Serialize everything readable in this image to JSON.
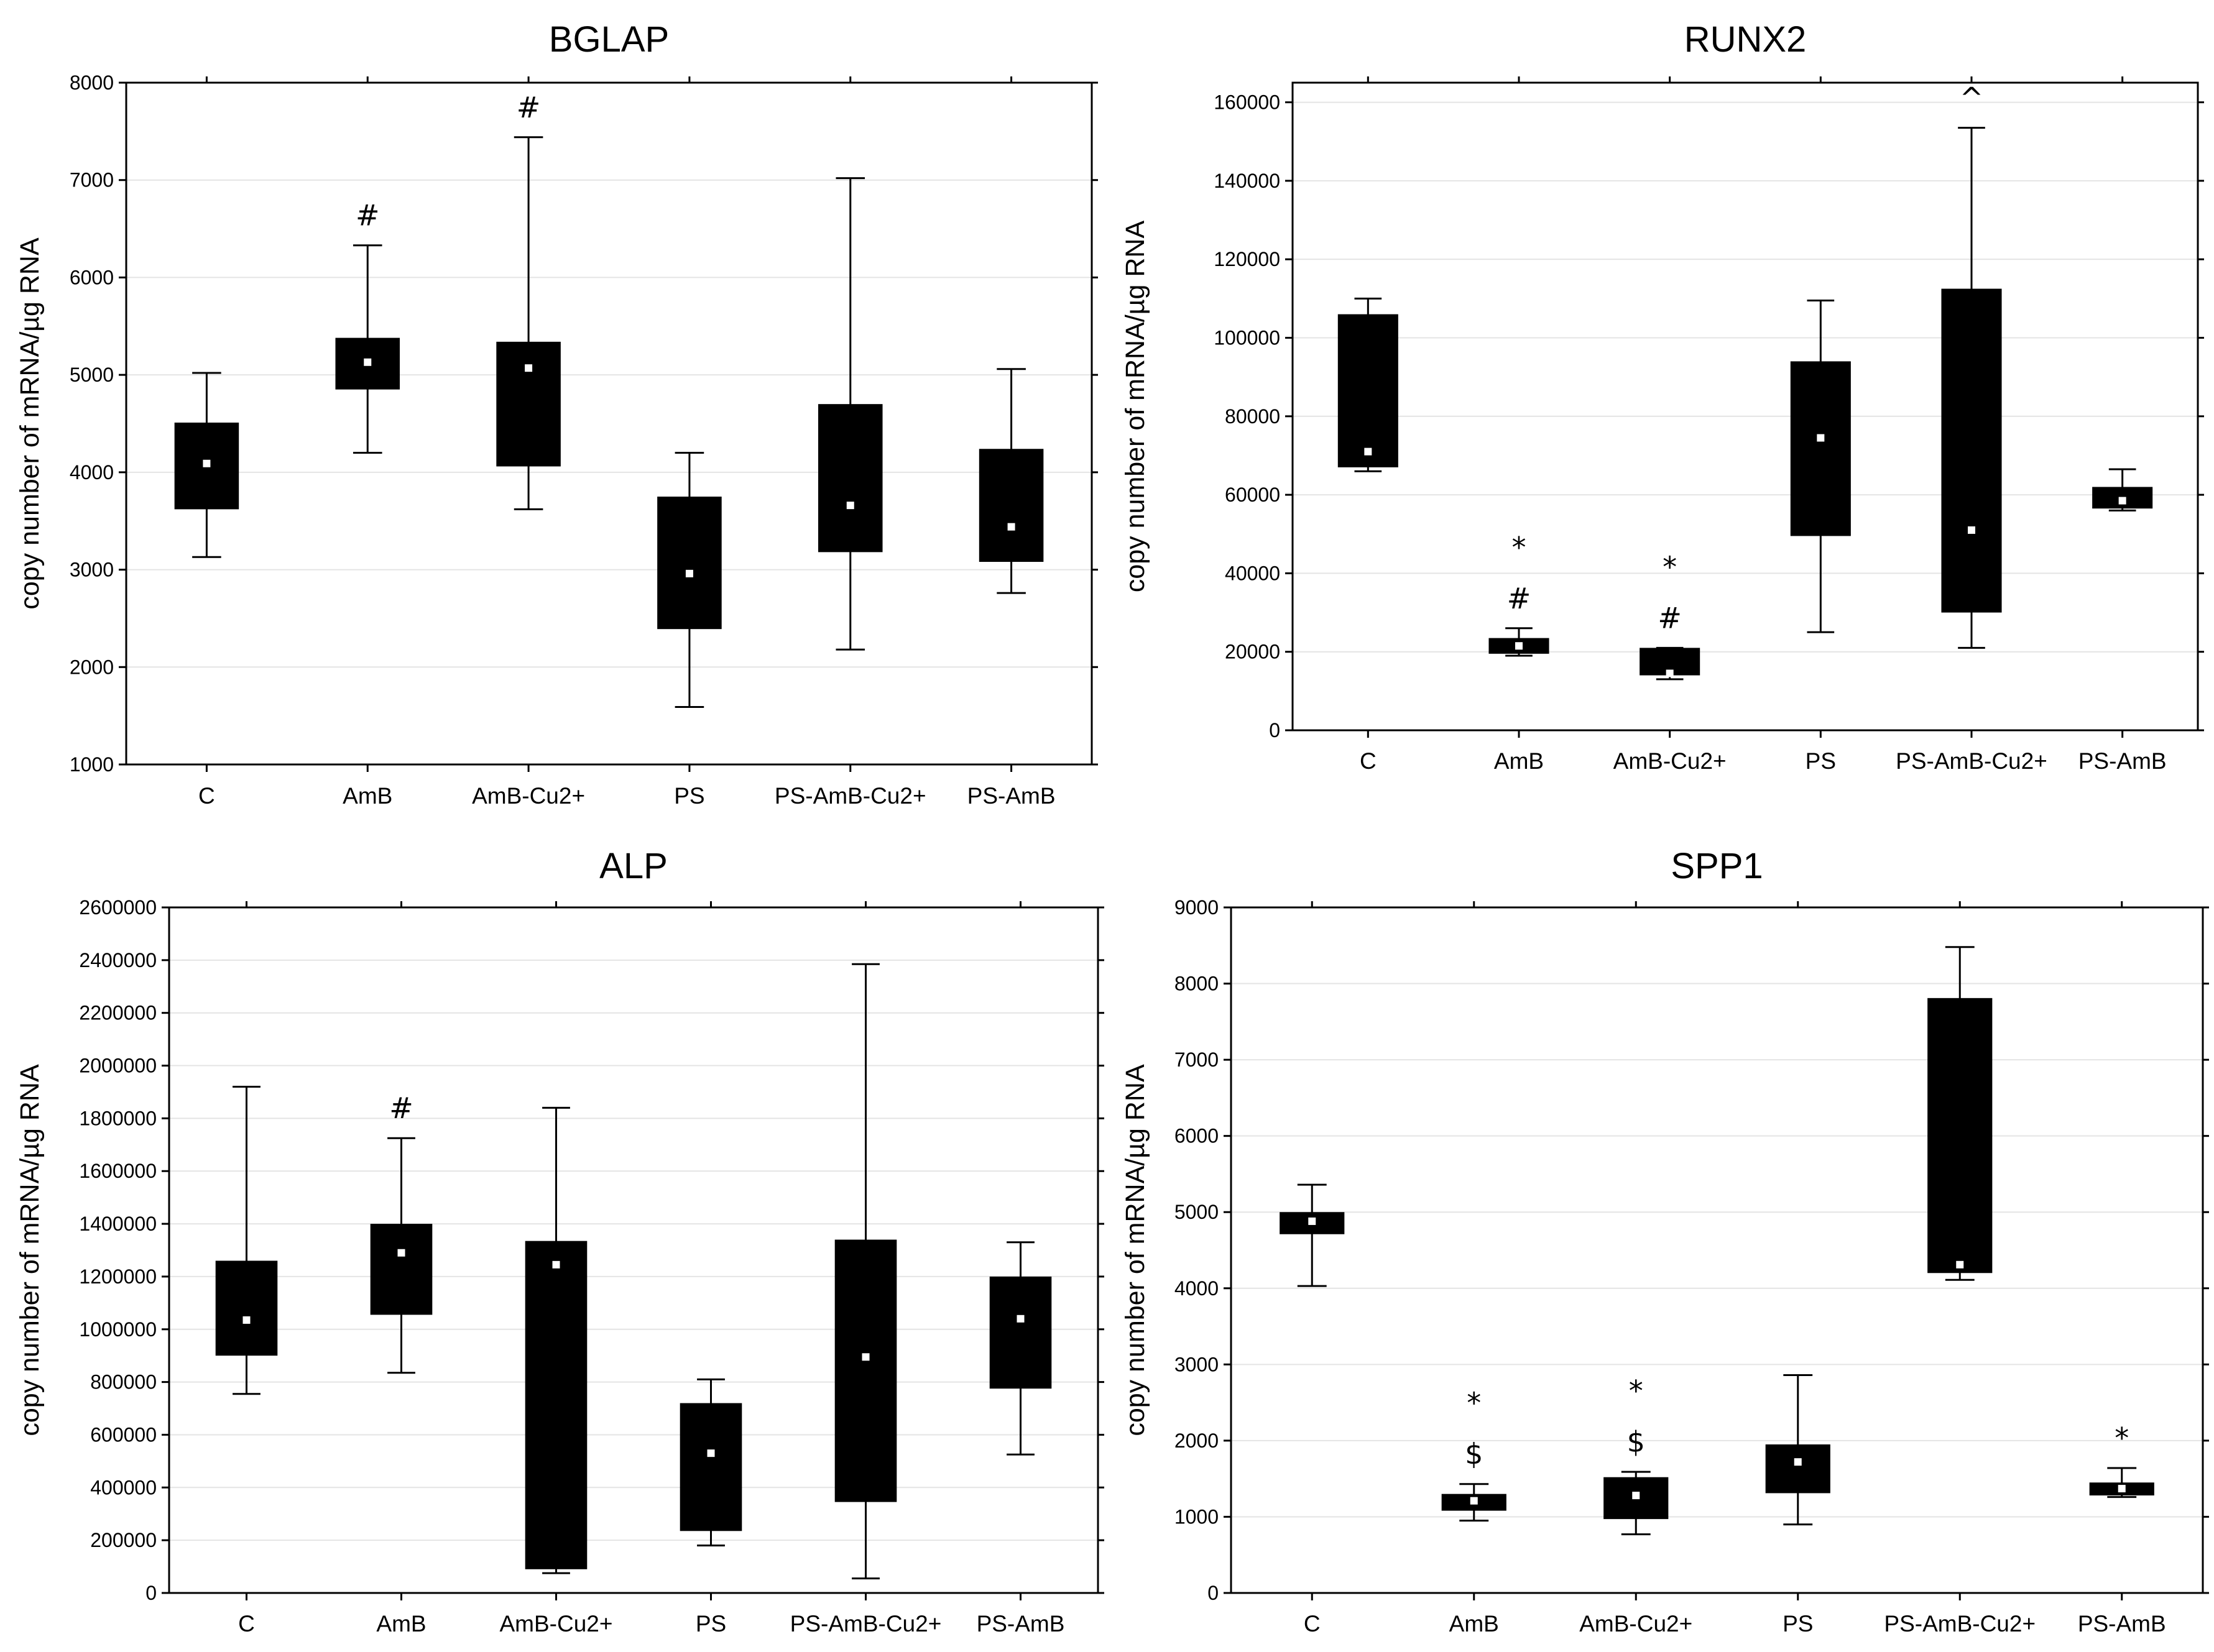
{
  "chart_data": [
    {
      "type": "box",
      "title": "BGLAP",
      "xlabel": "",
      "ylabel": "copy number of mRNA/µg RNA",
      "ylim": [
        1000,
        8000
      ],
      "yticks": [
        1000,
        2000,
        3000,
        4000,
        5000,
        6000,
        7000,
        8000
      ],
      "ytick_labels": [
        "1000",
        "2000",
        "3000",
        "4000",
        "5000",
        "6000",
        "7000",
        "8000"
      ],
      "grid": true,
      "categories": [
        "C",
        "AmB",
        "AmB-Cu2+",
        "PS",
        "PS-AmB-Cu2+",
        "PS-AmB"
      ],
      "boxes": [
        {
          "min": 3130,
          "q1": 3620,
          "median": 4090,
          "q3": 4510,
          "max": 5020,
          "annotations": []
        },
        {
          "min": 4200,
          "q1": 4850,
          "median": 5130,
          "q3": 5380,
          "max": 6330,
          "annotations": [
            "#"
          ]
        },
        {
          "min": 3620,
          "q1": 4060,
          "median": 5070,
          "q3": 5340,
          "max": 7440,
          "annotations": [
            "#"
          ]
        },
        {
          "min": 1590,
          "q1": 2390,
          "median": 2960,
          "q3": 3750,
          "max": 4200,
          "annotations": []
        },
        {
          "min": 2180,
          "q1": 3180,
          "median": 3660,
          "q3": 4700,
          "max": 7020,
          "annotations": []
        },
        {
          "min": 2760,
          "q1": 3080,
          "median": 3440,
          "q3": 4240,
          "max": 5060,
          "annotations": []
        }
      ]
    },
    {
      "type": "box",
      "title": "RUNX2",
      "xlabel": "",
      "ylabel": "copy number of mRNA/µg RNA",
      "ylim": [
        0,
        165000
      ],
      "yticks": [
        0,
        20000,
        40000,
        60000,
        80000,
        100000,
        120000,
        140000,
        160000
      ],
      "ytick_labels": [
        "0",
        "20000",
        "40000",
        "60000",
        "80000",
        "100000",
        "120000",
        "140000",
        "160000"
      ],
      "grid": true,
      "categories": [
        "C",
        "AmB",
        "AmB-Cu2+",
        "PS",
        "PS-AmB-Cu2+",
        "PS-AmB"
      ],
      "boxes": [
        {
          "min": 66000,
          "q1": 67000,
          "median": 71000,
          "q3": 106000,
          "max": 110000,
          "annotations": []
        },
        {
          "min": 19000,
          "q1": 19500,
          "median": 21500,
          "q3": 23500,
          "max": 26000,
          "annotations": [
            "#",
            "*"
          ]
        },
        {
          "min": 13000,
          "q1": 14000,
          "median": 14500,
          "q3": 21000,
          "max": 21000,
          "annotations": [
            "#",
            "*"
          ]
        },
        {
          "min": 25000,
          "q1": 49500,
          "median": 74500,
          "q3": 94000,
          "max": 109500,
          "annotations": []
        },
        {
          "min": 21000,
          "q1": 30000,
          "median": 51000,
          "q3": 112500,
          "max": 153500,
          "annotations": [
            "^"
          ]
        },
        {
          "min": 56000,
          "q1": 56500,
          "median": 58500,
          "q3": 62000,
          "max": 66500,
          "annotations": []
        }
      ]
    },
    {
      "type": "box",
      "title": "ALP",
      "xlabel": "",
      "ylabel": "copy number of mRNA/µg RNA",
      "ylim": [
        0,
        2600000
      ],
      "yticks": [
        0,
        200000,
        400000,
        600000,
        800000,
        1000000,
        1200000,
        1400000,
        1600000,
        1800000,
        2000000,
        2200000,
        2400000,
        2600000
      ],
      "ytick_labels": [
        "0",
        "200000",
        "400000",
        "600000",
        "800000",
        "1000000",
        "1200000",
        "1400000",
        "1600000",
        "1800000",
        "2000000",
        "2200000",
        "2400000",
        "2600000"
      ],
      "grid": true,
      "categories": [
        "C",
        "AmB",
        "AmB-Cu2+",
        "PS",
        "PS-AmB-Cu2+",
        "PS-AmB"
      ],
      "boxes": [
        {
          "min": 755000,
          "q1": 900000,
          "median": 1035000,
          "q3": 1260000,
          "max": 1920000,
          "annotations": []
        },
        {
          "min": 835000,
          "q1": 1055000,
          "median": 1290000,
          "q3": 1400000,
          "max": 1725000,
          "annotations": [
            "#"
          ]
        },
        {
          "min": 75000,
          "q1": 90000,
          "median": 1245000,
          "q3": 1335000,
          "max": 1840000,
          "annotations": []
        },
        {
          "min": 180000,
          "q1": 235000,
          "median": 530000,
          "q3": 720000,
          "max": 810000,
          "annotations": []
        },
        {
          "min": 55000,
          "q1": 345000,
          "median": 895000,
          "q3": 1340000,
          "max": 2385000,
          "annotations": []
        },
        {
          "min": 525000,
          "q1": 775000,
          "median": 1040000,
          "q3": 1200000,
          "max": 1330000,
          "annotations": []
        }
      ]
    },
    {
      "type": "box",
      "title": "SPP1",
      "xlabel": "",
      "ylabel": "copy number of mRNA/µg RNA",
      "ylim": [
        0,
        9000
      ],
      "yticks": [
        0,
        1000,
        2000,
        3000,
        4000,
        5000,
        6000,
        7000,
        8000,
        9000
      ],
      "ytick_labels": [
        "0",
        "1000",
        "2000",
        "3000",
        "4000",
        "5000",
        "6000",
        "7000",
        "8000",
        "9000"
      ],
      "grid": true,
      "categories": [
        "C",
        "AmB",
        "AmB-Cu2+",
        "PS",
        "PS-AmB-Cu2+",
        "PS-AmB"
      ],
      "boxes": [
        {
          "min": 4030,
          "q1": 4710,
          "median": 4880,
          "q3": 5000,
          "max": 5360,
          "annotations": []
        },
        {
          "min": 950,
          "q1": 1080,
          "median": 1210,
          "q3": 1300,
          "max": 1430,
          "annotations": [
            "$",
            "*"
          ]
        },
        {
          "min": 770,
          "q1": 970,
          "median": 1280,
          "q3": 1520,
          "max": 1590,
          "annotations": [
            "$",
            "*"
          ]
        },
        {
          "min": 900,
          "q1": 1310,
          "median": 1720,
          "q3": 1950,
          "max": 2860,
          "annotations": []
        },
        {
          "min": 4110,
          "q1": 4200,
          "median": 4310,
          "q3": 7810,
          "max": 8480,
          "annotations": []
        },
        {
          "min": 1260,
          "q1": 1280,
          "median": 1370,
          "q3": 1450,
          "max": 1640,
          "annotations": [
            "*"
          ]
        }
      ]
    }
  ]
}
